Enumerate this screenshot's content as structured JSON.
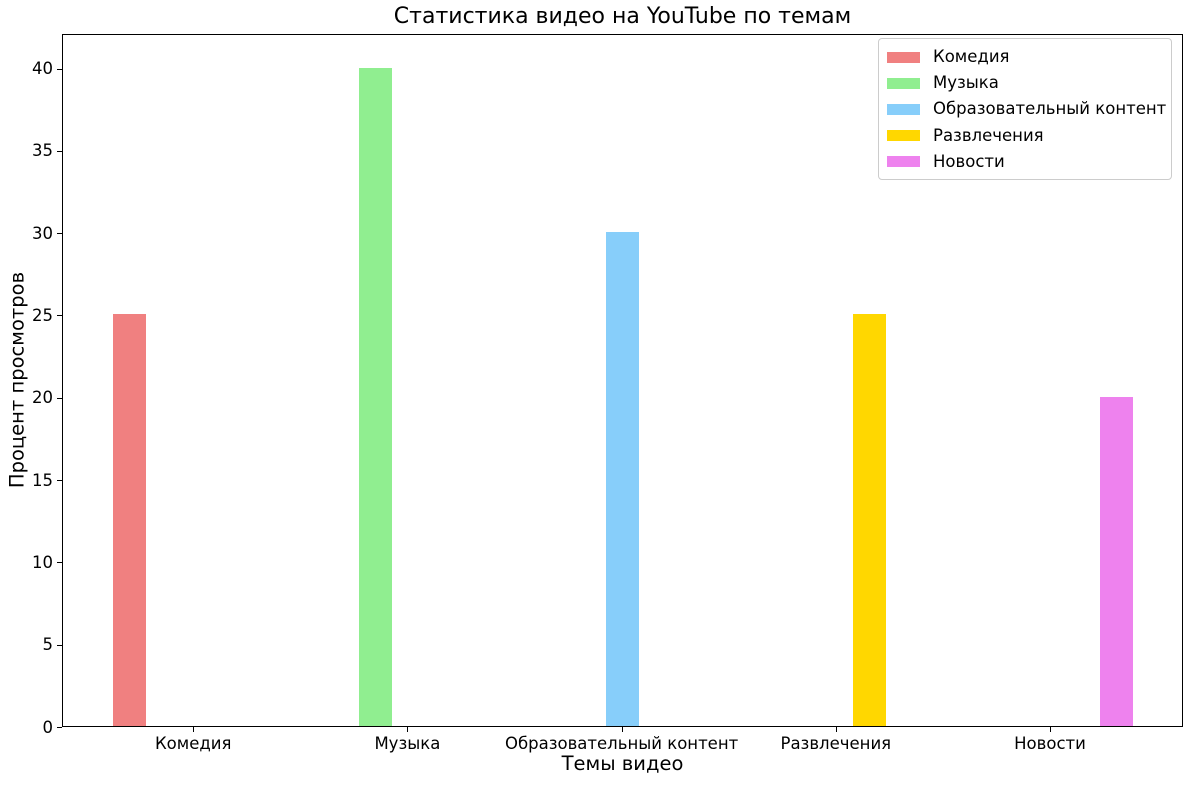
{
  "chart_data": {
    "type": "bar",
    "title": "Статистика видео на YouTube по темам",
    "xlabel": "Темы видео",
    "ylabel": "Процент просмотров",
    "categories": [
      "Комедия",
      "Музыка",
      "Образовательный контент",
      "Развлечения",
      "Новости"
    ],
    "values": [
      25,
      40,
      30,
      25,
      20
    ],
    "colors": [
      "#f08080",
      "#90ee90",
      "#87cefa",
      "#ffd700",
      "#ee82ee"
    ],
    "ylim": [
      0,
      42.1
    ],
    "yticks": [
      0,
      5,
      10,
      15,
      20,
      25,
      30,
      35,
      40
    ],
    "grid": false,
    "bar_layout": "grouped-offset: bar i is shifted (i-2) bar-widths from its category tick",
    "legend": {
      "position": "upper right",
      "entries": [
        {
          "label": "Комедия",
          "color": "#f08080"
        },
        {
          "label": "Музыка",
          "color": "#90ee90"
        },
        {
          "label": "Образовательный контент",
          "color": "#87cefa"
        },
        {
          "label": "Развлечения",
          "color": "#ffd700"
        },
        {
          "label": "Новости",
          "color": "#ee82ee"
        }
      ]
    },
    "axes": {
      "background": "#ffffff",
      "spine_color": "#000000",
      "text_color": "#000000"
    }
  }
}
